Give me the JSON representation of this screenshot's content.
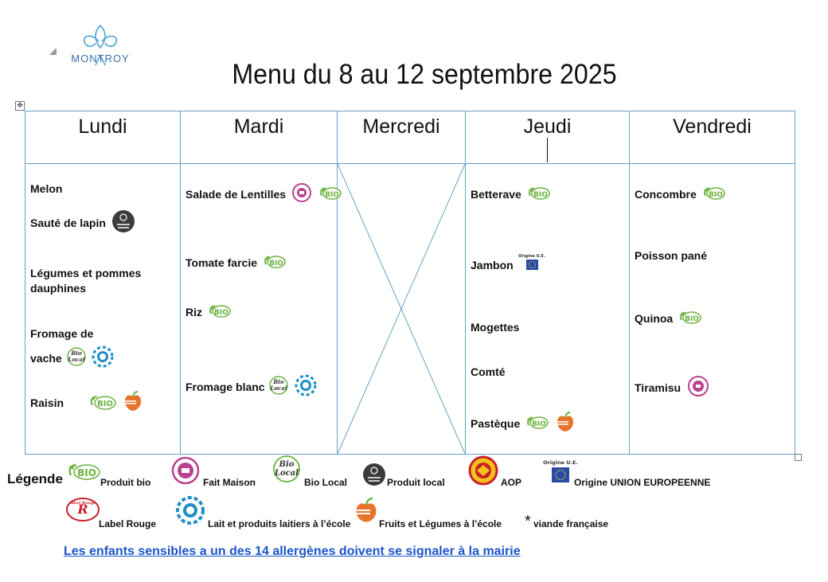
{
  "header": {
    "logo_text": "MONTROY",
    "title": "Menu du 8 au 12 septembre 2025"
  },
  "days": [
    "Lundi",
    "Mardi",
    "Mercredi",
    "Jeudi",
    "Vendredi"
  ],
  "menu": {
    "lundi": [
      {
        "text": "Melon",
        "labels": []
      },
      {
        "text": "Sauté de lapin",
        "labels": [
          "produit-local"
        ]
      },
      {
        "text": "Légumes et pommes",
        "labels": []
      },
      {
        "text": "dauphines",
        "labels": []
      },
      {
        "text": "Fromage de",
        "labels": []
      },
      {
        "text": "vache",
        "labels": [
          "bio-local",
          "lait-ecole"
        ]
      },
      {
        "text": "Raisin",
        "labels": [
          "bio",
          "fruits-ecole"
        ]
      }
    ],
    "mardi": [
      {
        "text": "Salade de Lentilles",
        "labels": [
          "fait-maison",
          "bio"
        ]
      },
      {
        "text": "Tomate farcie",
        "labels": [
          "bio"
        ]
      },
      {
        "text": "Riz",
        "labels": [
          "bio"
        ]
      },
      {
        "text": "Fromage blanc",
        "labels": [
          "bio-local",
          "lait-ecole"
        ]
      }
    ],
    "mercredi": [],
    "jeudi": [
      {
        "text": "Betterave",
        "labels": [
          "bio"
        ]
      },
      {
        "text": "Jambon",
        "labels": [
          "origine-ue"
        ]
      },
      {
        "text": "Mogettes",
        "labels": []
      },
      {
        "text": "Comté",
        "labels": []
      },
      {
        "text": "Pastèque",
        "labels": [
          "bio",
          "fruits-ecole"
        ]
      }
    ],
    "vendredi": [
      {
        "text": "Concombre",
        "labels": [
          "bio"
        ]
      },
      {
        "text": "Poisson pané",
        "labels": []
      },
      {
        "text": "Quinoa",
        "labels": [
          "bio"
        ]
      },
      {
        "text": "Tiramisu",
        "labels": [
          "fait-maison"
        ]
      }
    ]
  },
  "badges": {
    "bio": "BIO",
    "bio_local_line1": "Bio",
    "bio_local_line2": "Local",
    "origine_ue": "Origine U.E.",
    "label_rouge": "label Rouge"
  },
  "legend": {
    "title": "Légende",
    "items": [
      {
        "icon": "bio",
        "label": "Produit bio"
      },
      {
        "icon": "fait-maison",
        "label": "Fait Maison"
      },
      {
        "icon": "bio-local",
        "label": "Bio Local"
      },
      {
        "icon": "produit-local",
        "label": "Produit local"
      },
      {
        "icon": "aop",
        "label": "AOP"
      },
      {
        "icon": "origine-ue",
        "label": "Origine UNION EUROPEENNE"
      },
      {
        "icon": "label-rouge",
        "label": "Label Rouge"
      },
      {
        "icon": "lait-ecole",
        "label": "Lait et produits laitiers à l’école"
      },
      {
        "icon": "fruits-ecole",
        "label": "Fruits et Légumes à l’école"
      },
      {
        "icon": "asterisk",
        "label": "viande française"
      }
    ],
    "asterisk": "*"
  },
  "notice": "Les enfants sensibles a un des 14 allergènes doivent se signaler à la mairie",
  "colors": {
    "bio_green": "#6cb33f",
    "fait_maison_pink": "#b8428f",
    "lait_blue": "#1f8fc8",
    "fruits_orange": "#e8732a",
    "table_border": "#6aa0c7",
    "notice_blue": "#1a56c9"
  }
}
